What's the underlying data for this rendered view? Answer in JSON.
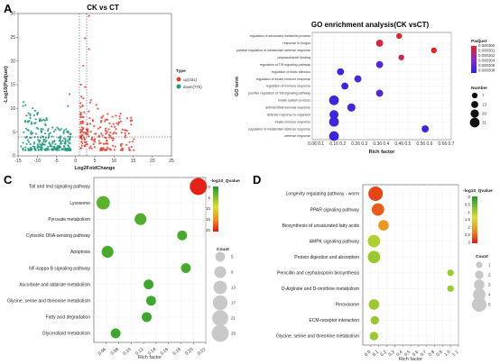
{
  "panels": {
    "a": "A",
    "b": "B",
    "c": "C",
    "d": "D"
  },
  "chart_data": [
    {
      "panel": "A",
      "type": "scatter",
      "title": "CK vs CT",
      "xlabel": "Log2FoldChange",
      "ylabel": "-Log10(Padjust)",
      "xlim": [
        -15,
        25
      ],
      "ylim": [
        0,
        30
      ],
      "xticks": [
        "-15",
        "-10",
        "-5",
        "0",
        "5",
        "10",
        "15",
        "20",
        "25"
      ],
      "yticks": [
        "0",
        "5",
        "10",
        "15",
        "20",
        "25",
        "30"
      ],
      "legend_title": "Type",
      "series": [
        {
          "name": "up(331)",
          "color": "#e8402f"
        },
        {
          "name": "down(770)",
          "color": "#1c9a7e"
        }
      ]
    },
    {
      "panel": "B",
      "type": "scatter",
      "title": "GO enrichment analysis(CK vsCT)",
      "xlabel": "Rich factor",
      "ylabel": "GO term",
      "xlim": [
        0.06,
        0.7
      ],
      "xticks": [
        "0.06",
        "0.1",
        "0.16",
        "0.2",
        "0.26",
        "0.3",
        "0.36",
        "0.4",
        "0.46",
        "0.5",
        "0.56",
        "0.6",
        "0.66",
        "0.7"
      ],
      "terms": [
        "regulation of secondary metabolic process",
        "response to fungus",
        "positive regulation of metabolism defense response",
        "polysaccharide binding",
        "regulation of TIR signaling pathway",
        "regulation of biotic stimulus",
        "regulation of innate immune response",
        "regulation of immune response",
        "positive regulation of Toll signaling pathway",
        "innate system process",
        "antimicrobial humoral response",
        "defense response to organism",
        "innate immune response",
        "regulation of metabolism defense response",
        "defense response"
      ],
      "x": [
        0.46,
        0.37,
        0.62,
        0.47,
        0.37,
        0.19,
        0.27,
        0.21,
        0.37,
        0.16,
        0.24,
        0.16,
        0.16,
        0.58,
        0.16
      ],
      "padj_level": [
        0.95,
        0.9,
        0.95,
        0.85,
        0.2,
        0.1,
        0.15,
        0.1,
        0.2,
        0.1,
        0.15,
        0.1,
        0.1,
        0.05,
        0.1
      ],
      "number": [
        7,
        13,
        7,
        7,
        13,
        13,
        13,
        13,
        13,
        31,
        20,
        25,
        31,
        13,
        31
      ],
      "legend_color_title": "Padjust",
      "legend_color_ticks": [
        "0.000300",
        "0.000301",
        "0.000302",
        "0.000304",
        "0.000306",
        "0.000308"
      ],
      "legend_size_title": "Number",
      "legend_size_ticks": [
        "7",
        "13",
        "20",
        "31"
      ]
    },
    {
      "panel": "C",
      "type": "scatter",
      "xlabel": "Rich factor",
      "xlim": [
        0.04,
        0.22
      ],
      "xticks": [
        "0.06",
        "0.08",
        "0.10",
        "0.12",
        "0.14",
        "0.16",
        "0.18",
        "0.20",
        "0.22"
      ],
      "categories": [
        "Toll and Imd signaling pathway",
        "Lysosome",
        "Pyruvate metabolism",
        "Cytosolic DNA-sensing pathway",
        "Apoptosis",
        "NF-kappa B signaling pathway",
        "Ascorbate and aldarate metabolism",
        "Glycine, serine and threonine metabolism",
        "Fatty acid degradation",
        "Glycerolipid metabolism"
      ],
      "x": [
        0.208,
        0.055,
        0.115,
        0.182,
        0.062,
        0.188,
        0.128,
        0.132,
        0.125,
        0.075
      ],
      "q_level": [
        19.5,
        3,
        2.5,
        2,
        2,
        2,
        1.5,
        1.5,
        1.5,
        1.5
      ],
      "count": [
        25,
        13,
        9,
        5,
        9,
        5,
        5,
        5,
        5,
        5
      ],
      "legend_color_title": "-log10_Qvalue",
      "legend_color_ticks": [
        "0",
        "5",
        "10",
        "15",
        "20"
      ],
      "legend_size_title": "Count",
      "legend_size_ticks": [
        "5",
        "9",
        "13",
        "17",
        "21",
        "25"
      ]
    },
    {
      "panel": "D",
      "type": "scatter",
      "xlabel": "Rich factor",
      "xlim": [
        -0.1,
        1.1
      ],
      "xticks": [
        "0.0",
        "0.1",
        "0.2",
        "0.3",
        "0.4",
        "0.5",
        "0.6",
        "0.7",
        "0.8",
        "0.9",
        "1.0",
        "1.1"
      ],
      "categories": [
        "Longevity regulating pathway - worm",
        "PPAR signaling pathway",
        "Biosynthesis of unsaturated fatty acids",
        "AMPK signaling pathway",
        "Protein digestion and absorption",
        "Penicillin and cephalosporin biosynthesis",
        "D-Arginine and D-ornithine metabolism",
        "Peroxisome",
        "ECM-receptor interaction",
        "Glycine, serine and threonine metabolism"
      ],
      "x": [
        0.06,
        0.09,
        0.16,
        0.04,
        0.04,
        1.0,
        1.0,
        0.04,
        0.05,
        0.04
      ],
      "q_level": [
        0.9,
        0.85,
        0.7,
        0.35,
        0.3,
        0.3,
        0.3,
        0.3,
        0.3,
        0.3
      ],
      "count": [
        5,
        4,
        3,
        4,
        4,
        1,
        1,
        3,
        2,
        2
      ],
      "legend_color_title": "-log10_Qvalue",
      "legend_color_ticks": [
        "0",
        "0.5",
        "1",
        "1.5",
        "2",
        "2.5",
        "3"
      ],
      "legend_size_title": "Count",
      "legend_size_ticks": [
        "1",
        "2",
        "3",
        "4",
        "5"
      ]
    }
  ]
}
